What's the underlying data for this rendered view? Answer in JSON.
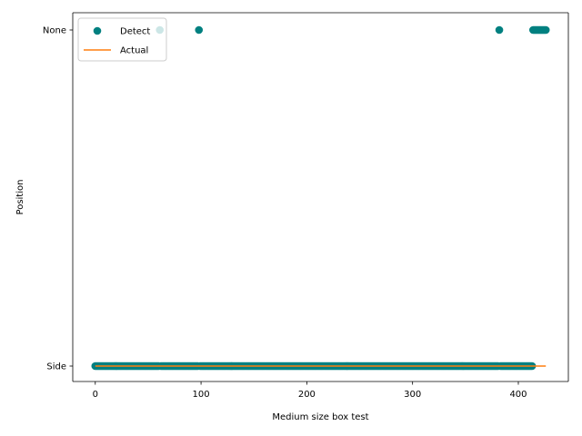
{
  "chart_data": {
    "type": "scatter",
    "title": "",
    "xlabel": "Medium size box test",
    "ylabel": "Position",
    "xlim": [
      -21.3,
      447.3
    ],
    "x_ticks": [
      0,
      100,
      200,
      300,
      400
    ],
    "y_categories": [
      "Side",
      "None"
    ],
    "grid": false,
    "legend_position": "top-left",
    "series": [
      {
        "name": "Detect",
        "kind": "scatter",
        "color": "#008080",
        "side_x_range": [
          0,
          413
        ],
        "side_exclude": [
          61,
          98,
          382
        ],
        "none_x": [
          61,
          98,
          382,
          414,
          415,
          416,
          417,
          418,
          419,
          420,
          421,
          422,
          423,
          424,
          425,
          426
        ]
      },
      {
        "name": "Actual",
        "kind": "line",
        "color": "#ff7f0e",
        "points": [
          [
            0,
            "Side"
          ],
          [
            426,
            "Side"
          ]
        ]
      }
    ]
  }
}
